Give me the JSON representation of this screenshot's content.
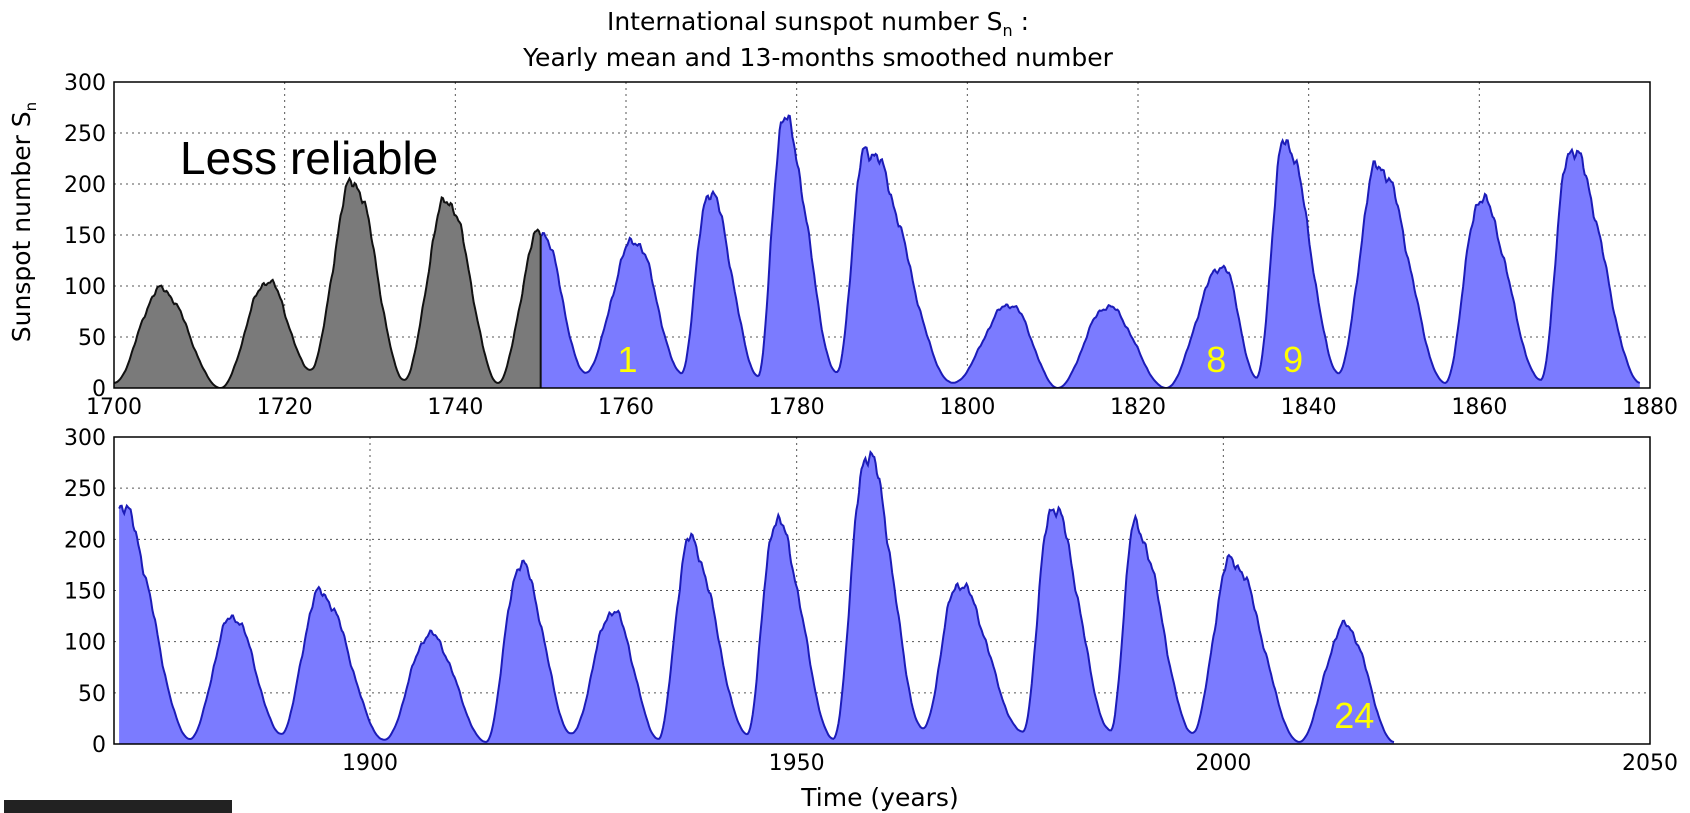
{
  "chart_data": {
    "type": "area",
    "title_line1": "International sunspot number S",
    "title_sub": "n",
    "title_colon": " :",
    "title_line2": "Yearly mean and 13-months smoothed number",
    "ylabel": "Sunspot number S",
    "ylabel_sub": "n",
    "xlabel": "Time (years)",
    "note": "Less reliable",
    "colors": {
      "fill": "#7b7bff",
      "line": "#1c1cb8",
      "grey_fill": "#7a7a7a",
      "grey_line": "#111111",
      "cycle_label": "#ffff00"
    },
    "panels": [
      {
        "xlim": [
          1700,
          1880
        ],
        "ylim": [
          0,
          300
        ],
        "xticks": [
          "1700",
          "1720",
          "1740",
          "1760",
          "1780",
          "1800",
          "1820",
          "1840",
          "1860",
          "1880"
        ],
        "yticks": [
          "0",
          "50",
          "100",
          "150",
          "200",
          "250",
          "300"
        ],
        "less_reliable_until": 1750,
        "peaks": [
          [
            1705.5,
            97
          ],
          [
            1718,
            105
          ],
          [
            1728,
            203
          ],
          [
            1739,
            185
          ],
          [
            1750,
            155
          ],
          [
            1761,
            145
          ],
          [
            1769.7,
            193
          ],
          [
            1778.4,
            264
          ],
          [
            1788.1,
            235
          ],
          [
            1805,
            82
          ],
          [
            1816.4,
            80
          ],
          [
            1829.9,
            120
          ],
          [
            1837.2,
            244
          ],
          [
            1848.1,
            219
          ],
          [
            1860.1,
            186
          ],
          [
            1870.6,
            235
          ]
        ],
        "minima": [
          [
            1700,
            5
          ],
          [
            1712.5,
            0
          ],
          [
            1723,
            18
          ],
          [
            1734,
            8
          ],
          [
            1745,
            5
          ],
          [
            1755.2,
            15
          ],
          [
            1766.5,
            15
          ],
          [
            1775.5,
            12
          ],
          [
            1784.7,
            15
          ],
          [
            1798.3,
            5
          ],
          [
            1810.6,
            0
          ],
          [
            1823.3,
            0
          ],
          [
            1833.9,
            10
          ],
          [
            1843.5,
            15
          ],
          [
            1856,
            5
          ],
          [
            1867.2,
            8
          ],
          [
            1878.9,
            5
          ]
        ],
        "cycle_labels": [
          [
            "1",
            1759
          ],
          [
            "8",
            1828
          ],
          [
            "9",
            1837
          ]
        ]
      },
      {
        "xlim": [
          1870,
          2050
        ],
        "ylim": [
          0,
          300
        ],
        "xticks": [
          "1900",
          "1950",
          "2000",
          "2050"
        ],
        "yticks": [
          "0",
          "50",
          "100",
          "150",
          "200",
          "250",
          "300"
        ],
        "peaks": [
          [
            1870.6,
            235
          ],
          [
            1883.9,
            125
          ],
          [
            1894.1,
            148
          ],
          [
            1907,
            107
          ],
          [
            1917.6,
            176
          ],
          [
            1928.4,
            130
          ],
          [
            1937.4,
            199
          ],
          [
            1947.5,
            219
          ],
          [
            1958.2,
            285
          ],
          [
            1968.9,
            157
          ],
          [
            1979.9,
            233
          ],
          [
            1989.6,
            213
          ],
          [
            2000.9,
            180
          ],
          [
            2014.3,
            116
          ]
        ],
        "minima": [
          [
            1878.9,
            5
          ],
          [
            1889.6,
            10
          ],
          [
            1901.7,
            4
          ],
          [
            1913.6,
            2
          ],
          [
            1923.6,
            10
          ],
          [
            1933.8,
            5
          ],
          [
            1944.2,
            10
          ],
          [
            1954.3,
            5
          ],
          [
            1964.8,
            15
          ],
          [
            1976.5,
            12
          ],
          [
            1986.8,
            13
          ],
          [
            1996.4,
            11
          ],
          [
            2008.9,
            2
          ],
          [
            2020,
            2
          ]
        ],
        "cycle_labels": [
          [
            "24",
            2013
          ]
        ]
      }
    ]
  }
}
